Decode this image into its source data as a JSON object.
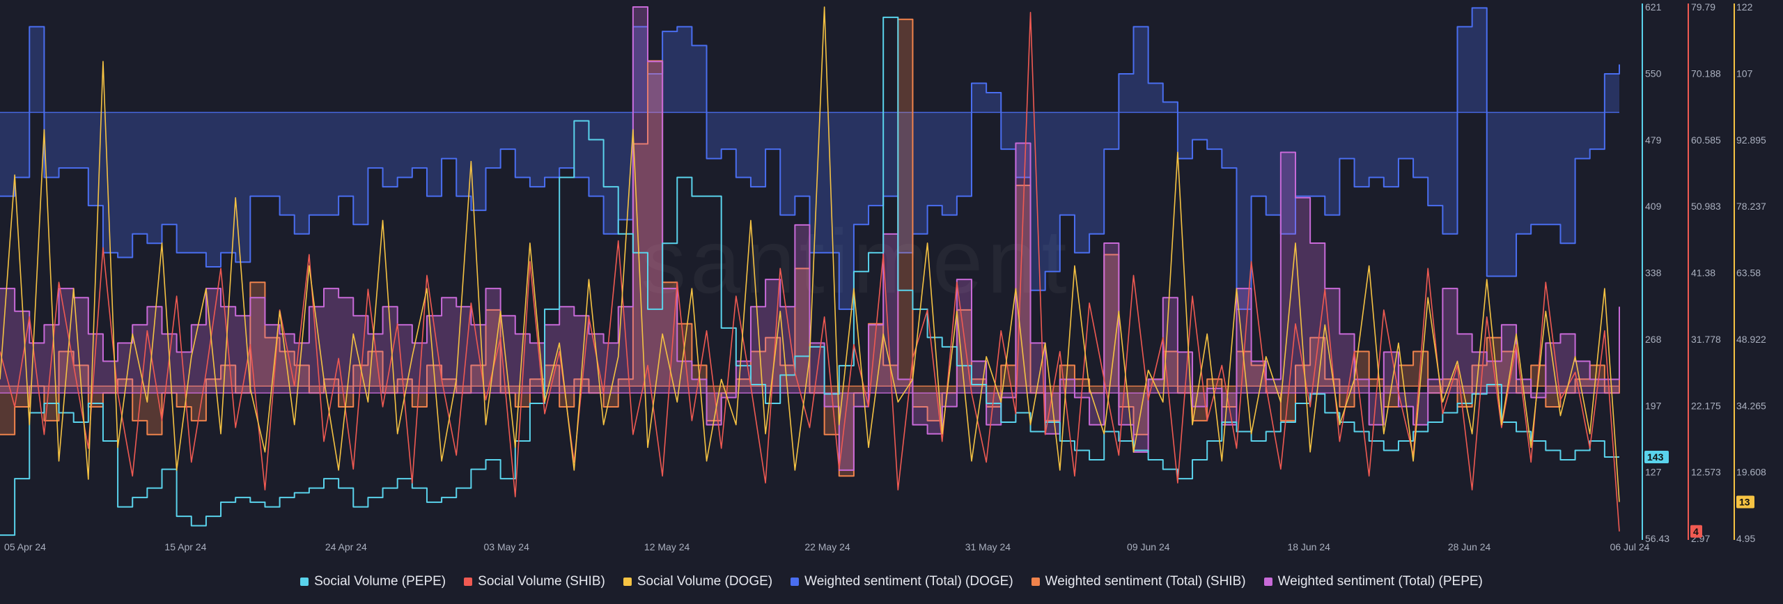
{
  "watermark": "santiment",
  "colors": {
    "background": "#1b1d2a",
    "pepe_volume": "#5ad3ec",
    "shib_volume": "#f05a52",
    "doge_volume": "#f6c343",
    "doge_sentiment": "#4a6ef0",
    "shib_sentiment": "#f0834c",
    "pepe_sentiment": "#c86ad8"
  },
  "legend": [
    {
      "label": "Social Volume (PEPE)",
      "color": "#5ad3ec"
    },
    {
      "label": "Social Volume (SHIB)",
      "color": "#f05a52"
    },
    {
      "label": "Social Volume (DOGE)",
      "color": "#f6c343"
    },
    {
      "label": "Weighted sentiment (Total) (DOGE)",
      "color": "#4a6ef0"
    },
    {
      "label": "Weighted sentiment (Total) (SHIB)",
      "color": "#f0834c"
    },
    {
      "label": "Weighted sentiment (Total) (PEPE)",
      "color": "#c86ad8"
    }
  ],
  "chart_data": {
    "type": "line",
    "x_tick_labels": [
      "05 Apr 24",
      "15 Apr 24",
      "24 Apr 24",
      "03 May 24",
      "12 May 24",
      "22 May 24",
      "31 May 24",
      "09 Jun 24",
      "18 Jun 24",
      "28 Jun 24",
      "06 Jul 24"
    ],
    "axes": [
      {
        "id": "a1",
        "color": "#5ad3ec",
        "ticks": [
          "621",
          "550",
          "479",
          "409",
          "338",
          "268",
          "197",
          "127",
          "56.43"
        ],
        "ylim": [
          56.43,
          621
        ]
      },
      {
        "id": "a2",
        "color": "#f05a52",
        "ticks": [
          "79.79",
          "70.188",
          "60.585",
          "50.983",
          "41.38",
          "31.778",
          "22.175",
          "12.573",
          "2.97"
        ],
        "ylim": [
          2.97,
          79.79
        ]
      },
      {
        "id": "a3",
        "color": "#f6c343",
        "ticks": [
          "122",
          "107",
          "92.895",
          "78.237",
          "63.58",
          "48.922",
          "34.265",
          "19.608",
          "4.95"
        ],
        "ylim": [
          4.95,
          122
        ]
      }
    ],
    "badges": [
      {
        "axis": "a1",
        "text": "143",
        "value": 143,
        "color": "#5ad3ec"
      },
      {
        "axis": "a2",
        "text": "4",
        "value": 4,
        "color": "#f05a52"
      },
      {
        "axis": "a3",
        "text": "13",
        "value": 13,
        "color": "#f6c343"
      }
    ],
    "series": [
      {
        "name": "Weighted sentiment (Total) (DOGE)",
        "axis": "a1",
        "step": true,
        "fill": true,
        "reference": 509,
        "color": "#4a6ef0",
        "values": [
          420,
          440,
          600,
          440,
          450,
          450,
          410,
          360,
          355,
          380,
          370,
          390,
          360,
          360,
          345,
          360,
          350,
          420,
          420,
          400,
          380,
          400,
          400,
          420,
          390,
          450,
          430,
          440,
          450,
          420,
          460,
          420,
          405,
          450,
          470,
          440,
          430,
          440,
          450,
          440,
          420,
          380,
          395,
          600,
          550,
          595,
          600,
          580,
          460,
          470,
          440,
          430,
          470,
          400,
          420,
          360,
          360,
          300,
          390,
          410,
          420,
          360,
          380,
          410,
          400,
          420,
          540,
          530,
          470,
          440,
          320,
          340,
          400,
          360,
          380,
          470,
          550,
          600,
          540,
          520,
          460,
          480,
          470,
          450,
          300,
          420,
          400,
          380,
          420,
          420,
          400,
          460,
          430,
          440,
          430,
          460,
          440,
          410,
          380,
          600,
          620,
          335,
          335,
          380,
          390,
          390,
          370,
          460,
          470,
          550,
          560
        ]
      },
      {
        "name": "Weighted sentiment (Total) (SHIB)",
        "axis": "a2",
        "step": true,
        "fill": true,
        "reference": 25,
        "color": "#f0834c",
        "values": [
          18,
          22,
          25,
          20,
          30,
          28,
          22,
          24,
          26,
          20,
          18,
          24,
          22,
          20,
          26,
          28,
          24,
          40,
          32,
          30,
          28,
          24,
          26,
          22,
          28,
          30,
          24,
          26,
          22,
          28,
          26,
          24,
          28,
          36,
          24,
          22,
          26,
          28,
          22,
          26,
          24,
          22,
          26,
          60,
          72,
          40,
          34,
          28,
          20,
          24,
          26,
          30,
          32,
          28,
          42,
          24,
          18,
          12,
          24,
          34,
          28,
          78,
          22,
          20,
          24,
          36,
          26,
          22,
          28,
          54,
          24,
          20,
          28,
          26,
          24,
          44,
          22,
          18,
          26,
          30,
          24,
          20,
          26,
          22,
          30,
          28,
          24,
          20,
          28,
          32,
          26,
          22,
          30,
          26,
          22,
          28,
          30,
          24,
          26,
          22,
          28,
          32,
          30,
          24,
          28,
          22,
          24,
          26,
          28,
          24,
          26
        ]
      },
      {
        "name": "Weighted sentiment (Total) (PEPE)",
        "axis": "a3",
        "step": true,
        "fill": true,
        "reference": 37,
        "color": "#c86ad8",
        "values": [
          60,
          55,
          48,
          52,
          60,
          58,
          50,
          44,
          48,
          52,
          56,
          50,
          46,
          52,
          60,
          56,
          54,
          58,
          52,
          50,
          48,
          56,
          60,
          58,
          54,
          50,
          56,
          52,
          48,
          54,
          58,
          56,
          52,
          60,
          54,
          50,
          48,
          52,
          56,
          54,
          50,
          48,
          56,
          122,
          110,
          60,
          44,
          40,
          30,
          36,
          44,
          56,
          62,
          56,
          74,
          48,
          34,
          20,
          34,
          52,
          72,
          40,
          30,
          28,
          34,
          62,
          44,
          30,
          36,
          92,
          48,
          28,
          40,
          36,
          30,
          70,
          30,
          24,
          40,
          58,
          46,
          34,
          38,
          30,
          60,
          44,
          40,
          90,
          80,
          70,
          60,
          50,
          40,
          30,
          46,
          34,
          30,
          40,
          60,
          50,
          46,
          44,
          52,
          40,
          36,
          48,
          50,
          44,
          40,
          40,
          56
        ]
      },
      {
        "name": "Social Volume (PEPE)",
        "axis": "a1",
        "step": true,
        "fill": false,
        "color": "#5ad3ec",
        "values": [
          60,
          120,
          190,
          200,
          190,
          180,
          200,
          160,
          90,
          100,
          110,
          130,
          80,
          70,
          80,
          95,
          100,
          95,
          90,
          100,
          105,
          110,
          120,
          110,
          90,
          100,
          110,
          120,
          110,
          95,
          100,
          110,
          130,
          140,
          120,
          160,
          200,
          300,
          440,
          500,
          480,
          430,
          380,
          360,
          300,
          370,
          440,
          420,
          420,
          280,
          240,
          220,
          200,
          230,
          250,
          260,
          210,
          240,
          340,
          360,
          610,
          320,
          300,
          270,
          260,
          240,
          220,
          200,
          180,
          190,
          170,
          180,
          160,
          150,
          140,
          170,
          160,
          150,
          140,
          130,
          120,
          140,
          160,
          180,
          170,
          160,
          170,
          180,
          200,
          210,
          190,
          180,
          170,
          160,
          150,
          160,
          170,
          180,
          190,
          200,
          210,
          220,
          180,
          170,
          160,
          150,
          140,
          150,
          160,
          143,
          143
        ]
      },
      {
        "name": "Social Volume (SHIB)",
        "axis": "a2",
        "step": false,
        "fill": false,
        "color": "#f05a52",
        "values": [
          30,
          22,
          35,
          18,
          40,
          28,
          16,
          45,
          24,
          12,
          33,
          20,
          38,
          14,
          27,
          42,
          19,
          31,
          10,
          36,
          25,
          44,
          17,
          29,
          13,
          39,
          22,
          34,
          11,
          41,
          26,
          15,
          37,
          23,
          32,
          9,
          43,
          21,
          30,
          14,
          35,
          24,
          46,
          18,
          28,
          12,
          40,
          20,
          33,
          16,
          38,
          25,
          11,
          42,
          27,
          19,
          35,
          13,
          31,
          22,
          44,
          10,
          29,
          36,
          17,
          40,
          24,
          14,
          33,
          21,
          79,
          18,
          30,
          12,
          37,
          26,
          15,
          41,
          23,
          32,
          11,
          38,
          20,
          28,
          16,
          43,
          25,
          13,
          34,
          22,
          39,
          17,
          30,
          12,
          36,
          24,
          15,
          42,
          21,
          28,
          10,
          35,
          19,
          31,
          14,
          40,
          23,
          27,
          16,
          33,
          4
        ]
      },
      {
        "name": "Social Volume (DOGE)",
        "axis": "a3",
        "step": false,
        "fill": false,
        "color": "#f6c343",
        "values": [
          40,
          85,
          30,
          95,
          22,
          60,
          18,
          110,
          25,
          50,
          35,
          70,
          20,
          45,
          60,
          28,
          80,
          38,
          24,
          55,
          30,
          65,
          40,
          20,
          50,
          35,
          75,
          28,
          45,
          60,
          22,
          40,
          88,
          30,
          55,
          25,
          70,
          35,
          48,
          20,
          62,
          30,
          45,
          95,
          25,
          50,
          35,
          60,
          22,
          40,
          30,
          75,
          28,
          55,
          20,
          45,
          122,
          30,
          60,
          25,
          50,
          35,
          40,
          70,
          28,
          55,
          22,
          45,
          35,
          60,
          30,
          48,
          20,
          65,
          38,
          28,
          55,
          24,
          42,
          35,
          90,
          30,
          50,
          22,
          60,
          28,
          45,
          35,
          70,
          24,
          52,
          30,
          40,
          65,
          28,
          48,
          22,
          58,
          35,
          44,
          28,
          62,
          30,
          50,
          25,
          55,
          32,
          45,
          28,
          60,
          13
        ]
      }
    ]
  }
}
